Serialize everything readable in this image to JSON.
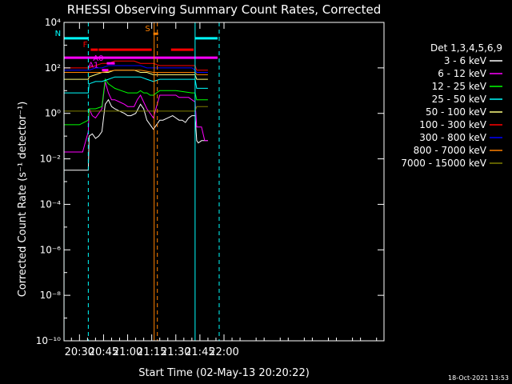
{
  "chart_data": {
    "type": "line",
    "title": "RHESSI Observing Summary Count Rates, Corrected",
    "xlabel": "Start Time (02-May-13 20:20:22)",
    "ylabel": "Corrected Count Rate (s⁻¹ detector⁻¹)",
    "ylim_log10": [
      -10,
      4
    ],
    "log_scale_y": true,
    "xlim_minutes": [
      20.37,
      219.63
    ],
    "x_ticks": [
      "20:30",
      "20:45",
      "21:00",
      "21:15",
      "21:30",
      "21:45",
      "22:00"
    ],
    "x_ticks_minutes": [
      30,
      45,
      60,
      75,
      90,
      105,
      120
    ],
    "y_ticks": [
      "10⁴",
      "10²",
      "10⁰",
      "10⁻²",
      "10⁻⁴",
      "10⁻⁶",
      "10⁻⁸",
      "10⁻¹⁰"
    ],
    "y_ticks_log10": [
      4,
      2,
      0,
      -2,
      -4,
      -6,
      -8,
      -10
    ],
    "legend_title": "Det 1,3,4,5,6,9",
    "legend_position": "right",
    "series": [
      {
        "name": "3 - 6 keV",
        "color": "#ffffff",
        "x": [
          20.4,
          35.5,
          36,
          38,
          40,
          42,
          44,
          46,
          48,
          50,
          52,
          55,
          58,
          60,
          62,
          65,
          68,
          70,
          72,
          74,
          76,
          80,
          82,
          85,
          88,
          90,
          92,
          94,
          96,
          98,
          100,
          102,
          103,
          104,
          106,
          108,
          110
        ],
        "y_log10": [
          -2.5,
          -2.5,
          -1.0,
          -0.9,
          -1.1,
          -1.0,
          -0.8,
          0.4,
          0.6,
          0.3,
          0.2,
          0.1,
          0.0,
          -0.1,
          -0.1,
          0.0,
          0.4,
          0.2,
          -0.3,
          -0.5,
          -0.7,
          -0.3,
          -0.3,
          -0.2,
          -0.1,
          -0.2,
          -0.3,
          -0.3,
          -0.4,
          -0.2,
          -0.1,
          -0.1,
          -1.2,
          -1.3,
          -1.2,
          -1.2,
          -1.2
        ]
      },
      {
        "name": "6 - 12 keV",
        "color": "#ff00ff",
        "x": [
          20.4,
          30,
          32,
          35.5,
          36,
          38,
          40,
          42,
          44,
          46,
          48,
          50,
          52,
          55,
          58,
          60,
          62,
          64,
          66,
          68,
          70,
          72,
          74,
          76,
          80,
          82,
          85,
          88,
          90,
          92,
          94,
          96,
          98,
          100,
          102,
          103,
          106,
          108,
          110
        ],
        "y_log10": [
          -1.7,
          -1.7,
          -1.7,
          -0.8,
          0.2,
          -0.1,
          -0.2,
          0.0,
          0.2,
          1.4,
          0.9,
          0.6,
          0.6,
          0.5,
          0.4,
          0.3,
          0.3,
          0.3,
          0.6,
          0.8,
          0.5,
          0.2,
          0.0,
          -0.2,
          0.8,
          0.8,
          0.8,
          0.8,
          0.8,
          0.7,
          0.7,
          0.7,
          0.7,
          0.6,
          0.5,
          -0.6,
          -0.6,
          -1.2,
          -1.2
        ]
      },
      {
        "name": "12 - 25 keV",
        "color": "#00ff00",
        "x": [
          20.4,
          30,
          35.5,
          36,
          40,
          44,
          46,
          48,
          52,
          56,
          60,
          64,
          66,
          68,
          70,
          72,
          74,
          76,
          80,
          90,
          100,
          102,
          103,
          106,
          110
        ],
        "y_log10": [
          -0.5,
          -0.5,
          -0.3,
          0.2,
          0.2,
          0.3,
          1.5,
          1.3,
          1.1,
          1.0,
          0.9,
          0.9,
          0.9,
          1.0,
          0.9,
          0.9,
          0.8,
          0.8,
          1.0,
          1.0,
          0.9,
          0.9,
          0.6,
          0.6,
          0.6
        ]
      },
      {
        "name": "25 - 50 keV",
        "color": "#00ffff",
        "x": [
          20.4,
          30,
          35.5,
          36,
          40,
          44,
          48,
          52,
          56,
          60,
          64,
          68,
          72,
          76,
          80,
          90,
          100,
          102,
          103,
          106,
          110
        ],
        "y_log10": [
          0.9,
          0.9,
          0.9,
          1.3,
          1.4,
          1.4,
          1.5,
          1.6,
          1.6,
          1.6,
          1.6,
          1.6,
          1.5,
          1.4,
          1.5,
          1.5,
          1.5,
          1.5,
          1.1,
          1.1,
          1.1
        ]
      },
      {
        "name": "50 - 100 keV",
        "color": "#ffff80",
        "x": [
          20.4,
          30,
          35.5,
          36,
          40,
          44,
          48,
          52,
          56,
          60,
          64,
          68,
          72,
          76,
          80,
          90,
          100,
          102,
          103,
          106,
          110
        ],
        "y_log10": [
          1.5,
          1.5,
          1.5,
          1.6,
          1.7,
          1.8,
          1.8,
          1.9,
          1.9,
          1.9,
          1.9,
          1.8,
          1.8,
          1.7,
          1.7,
          1.7,
          1.7,
          1.7,
          1.5,
          1.5,
          1.5
        ]
      },
      {
        "name": "100 - 300 keV",
        "color": "#ff0000",
        "x": [
          20.4,
          30,
          35.5,
          36,
          40,
          44,
          48,
          52,
          56,
          60,
          64,
          68,
          72,
          76,
          80,
          90,
          100,
          102,
          103,
          106,
          110
        ],
        "y_log10": [
          2.0,
          2.0,
          2.0,
          2.0,
          2.1,
          2.2,
          2.2,
          2.3,
          2.3,
          2.3,
          2.3,
          2.2,
          2.2,
          2.2,
          2.1,
          2.1,
          2.1,
          2.1,
          1.9,
          1.9,
          1.9
        ]
      },
      {
        "name": "300 - 800 keV",
        "color": "#0000ff",
        "x": [
          20.4,
          30,
          35.5,
          36,
          40,
          44,
          48,
          52,
          56,
          60,
          64,
          68,
          72,
          76,
          80,
          90,
          100,
          102,
          103,
          106,
          110
        ],
        "y_log10": [
          1.9,
          1.9,
          1.9,
          1.9,
          2.0,
          2.0,
          2.1,
          2.1,
          2.1,
          2.1,
          2.1,
          2.1,
          2.0,
          2.0,
          2.0,
          2.0,
          2.0,
          1.9,
          1.8,
          1.8,
          1.8
        ]
      },
      {
        "name": "800 - 7000 keV",
        "color": "#ff8000",
        "x": [
          20.4,
          35.5,
          36,
          44,
          52,
          60,
          68,
          76,
          80,
          90,
          100,
          102,
          103,
          110
        ],
        "y_log10": [
          1.8,
          1.8,
          1.8,
          1.8,
          1.9,
          1.9,
          1.9,
          1.8,
          1.8,
          1.8,
          1.8,
          1.8,
          1.7,
          1.7
        ]
      },
      {
        "name": "7000 - 15000 keV",
        "color": "#808000",
        "x": [
          20.4,
          35.5,
          36,
          44,
          52,
          60,
          68,
          76,
          80,
          90,
          100,
          102,
          103,
          110
        ],
        "y_log10": [
          0.1,
          0.1,
          0.1,
          0.1,
          0.1,
          0.1,
          0.1,
          0.1,
          0.1,
          0.1,
          0.1,
          0.1,
          0.3,
          0.3
        ]
      }
    ],
    "flag_bars": [
      {
        "label": "N",
        "color": "#00ffff",
        "y_log10": 3.3,
        "segments": [
          [
            20.4,
            35.5
          ],
          [
            102,
            116
          ]
        ]
      },
      {
        "label": "F",
        "color": "#ff0000",
        "y_log10": 2.8,
        "segments": [
          [
            37,
            41.5
          ],
          [
            42,
            75
          ],
          [
            87,
            101
          ]
        ]
      },
      {
        "label": "S",
        "color": "#ff8000",
        "y_log10": 3.5,
        "segments": [
          [
            76,
            79
          ]
        ]
      },
      {
        "label": "",
        "color": "#ff00ff",
        "y_log10": 2.45,
        "segments": [
          [
            20.4,
            116
          ]
        ]
      },
      {
        "label": "A0",
        "color": "#ff00ff",
        "y_log10": 2.2,
        "segments": [
          [
            47,
            52
          ]
        ]
      },
      {
        "label": "A1",
        "color": "#ff00ff",
        "y_log10": 1.9,
        "segments": [
          [
            44,
            48
          ]
        ]
      }
    ],
    "vertical_lines": [
      {
        "x": 35.5,
        "color": "#00ffff",
        "style": "dashed"
      },
      {
        "x": 20.4,
        "color": "#00ffff",
        "style": "solid"
      },
      {
        "x": 102,
        "color": "#00ffff",
        "style": "solid"
      },
      {
        "x": 117,
        "color": "#00ffff",
        "style": "dashed"
      },
      {
        "x": 76.5,
        "color": "#ff8000",
        "style": "solid"
      },
      {
        "x": 78.5,
        "color": "#ff8000",
        "style": "dashed"
      }
    ],
    "footer_stamp": "18-Oct-2021 13:53"
  }
}
